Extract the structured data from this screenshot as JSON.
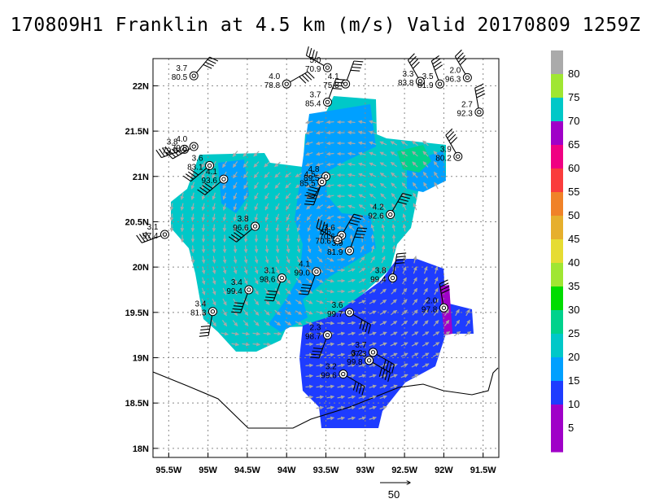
{
  "title": "170809H1 Franklin at 4.5 km (m/s) Valid 20170809 1259Z",
  "axes": {
    "x_ticks": [
      "95.5W",
      "95W",
      "94.5W",
      "94W",
      "93.5W",
      "93W",
      "92.5W",
      "92W",
      "91.5W"
    ],
    "y_ticks": [
      "22N",
      "21.5N",
      "21N",
      "20.5N",
      "20N",
      "19.5N",
      "19N",
      "18.5N",
      "18N"
    ],
    "lon_range": [
      -95.7,
      -91.3
    ],
    "lat_range": [
      17.9,
      22.3
    ]
  },
  "colorbar": {
    "labels": [
      "5",
      "10",
      "15",
      "20",
      "25",
      "30",
      "35",
      "40",
      "45",
      "50",
      "55",
      "60",
      "65",
      "70",
      "75",
      "80"
    ],
    "colors": [
      "#a000c8",
      "#1e3cff",
      "#00a0ff",
      "#00c8c8",
      "#00d28c",
      "#00dc00",
      "#a0e632",
      "#e6dc32",
      "#e6af2d",
      "#f08228",
      "#fa3c3c",
      "#f00082",
      "#a000c8",
      "#00c8c8",
      "#a0e632",
      "#aaaaaa"
    ]
  },
  "reference_vector": {
    "label": "50"
  },
  "observations": [
    {
      "top": "3.7",
      "bottom": "80.5",
      "lon": -95.18,
      "lat": 22.11
    },
    {
      "top": "4.0",
      "bottom": "78.8",
      "lon": -94.0,
      "lat": 22.02
    },
    {
      "top": "5.0",
      "bottom": "70.9",
      "lon": -93.48,
      "lat": 22.2
    },
    {
      "top": "4.1",
      "bottom": "75.8",
      "lon": -93.25,
      "lat": 22.02
    },
    {
      "top": "3.7",
      "bottom": "85.4",
      "lon": -93.48,
      "lat": 21.82
    },
    {
      "top": "3.3",
      "bottom": "83.8",
      "lon": -92.3,
      "lat": 22.05
    },
    {
      "top": "3.5",
      "bottom": "81.9",
      "lon": -92.05,
      "lat": 22.02
    },
    {
      "top": "2.0",
      "bottom": "96.3",
      "lon": -91.7,
      "lat": 22.09
    },
    {
      "top": "2.7",
      "bottom": "92.3",
      "lon": -91.55,
      "lat": 21.71
    },
    {
      "top": "3.8",
      "bottom": "79.6",
      "lon": -95.3,
      "lat": 21.3
    },
    {
      "top": "4.0",
      "bottom": "79.8",
      "lon": -95.18,
      "lat": 21.33
    },
    {
      "top": "3.9",
      "bottom": "80.2",
      "lon": -91.82,
      "lat": 21.22
    },
    {
      "top": "3.6",
      "bottom": "83.1",
      "lon": -94.98,
      "lat": 21.12
    },
    {
      "top": "4.1",
      "bottom": "93.6",
      "lon": -94.8,
      "lat": 20.97
    },
    {
      "top": "4.8",
      "bottom": "89.5",
      "lon": -93.5,
      "lat": 21.0
    },
    {
      "top": "4.5",
      "bottom": "85.5",
      "lon": -93.55,
      "lat": 20.94
    },
    {
      "top": "3.8",
      "bottom": "96.6",
      "lon": -94.4,
      "lat": 20.45
    },
    {
      "top": "4.2",
      "bottom": "92.6",
      "lon": -92.68,
      "lat": 20.58
    },
    {
      "top": "3.1",
      "bottom": "97.4",
      "lon": -95.55,
      "lat": 20.36
    },
    {
      "top": "3.6",
      "bottom": "70.6",
      "lon": -93.3,
      "lat": 20.35
    },
    {
      "top": "6.6",
      "bottom": "70.6",
      "lon": -93.35,
      "lat": 20.3
    },
    {
      "top": "3.9",
      "bottom": "81.9",
      "lon": -93.2,
      "lat": 20.18
    },
    {
      "top": "4.1",
      "bottom": "99.0",
      "lon": -93.62,
      "lat": 19.95
    },
    {
      "top": "3.1",
      "bottom": "98.6",
      "lon": -94.06,
      "lat": 19.88
    },
    {
      "top": "3.8",
      "bottom": "99.4",
      "lon": -92.65,
      "lat": 19.88
    },
    {
      "top": "3.4",
      "bottom": "99.4",
      "lon": -94.48,
      "lat": 19.75
    },
    {
      "top": "2.0",
      "bottom": "97.8",
      "lon": -92.0,
      "lat": 19.55
    },
    {
      "top": "3.4",
      "bottom": "81.3",
      "lon": -94.94,
      "lat": 19.51
    },
    {
      "top": "3.6",
      "bottom": "99.7",
      "lon": -93.2,
      "lat": 19.5
    },
    {
      "top": "2.3",
      "bottom": "98.7",
      "lon": -93.48,
      "lat": 19.25
    },
    {
      "top": "3.7",
      "bottom": "97.3",
      "lon": -92.9,
      "lat": 19.06
    },
    {
      "top": "3.2",
      "bottom": "99.8",
      "lon": -92.95,
      "lat": 18.97
    },
    {
      "top": "3.2",
      "bottom": "99.6",
      "lon": -93.28,
      "lat": 18.82
    }
  ]
}
